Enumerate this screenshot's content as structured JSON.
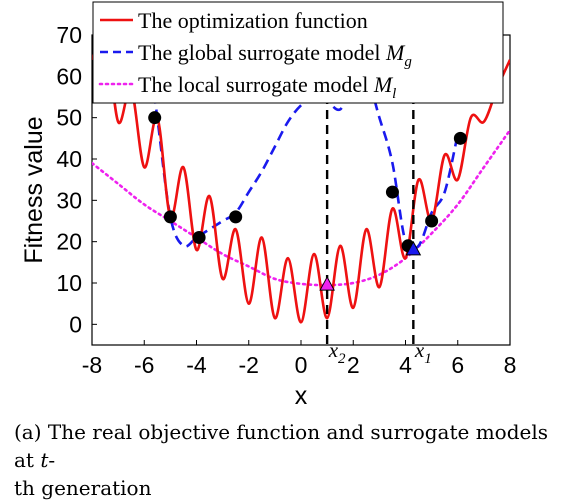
{
  "chart_data": {
    "type": "line",
    "xlabel": "x",
    "ylabel": "Fitness value",
    "xlim": [
      -8,
      8
    ],
    "ylim": [
      -5,
      70
    ],
    "x_ticks": [
      -8,
      -6,
      -4,
      -2,
      0,
      2,
      4,
      6,
      8
    ],
    "y_ticks": [
      0,
      10,
      20,
      30,
      40,
      50,
      60,
      70
    ],
    "grid": false,
    "legend_position": "top",
    "series": [
      {
        "name": "The optimization function",
        "name_subscript": "",
        "color": "#ee1111",
        "style": "solid",
        "x": [
          -8,
          -7.5,
          -7,
          -6.5,
          -6,
          -5.5,
          -5,
          -4.5,
          -4,
          -3.5,
          -3,
          -2.5,
          -2,
          -1.5,
          -1,
          -0.5,
          0,
          0.5,
          1,
          1.5,
          2,
          2.5,
          3,
          3.5,
          4,
          4.5,
          5,
          5.5,
          6,
          6.5,
          7,
          7.5,
          8
        ],
        "y": [
          64,
          71,
          49,
          57,
          38,
          50,
          26,
          38,
          18,
          31,
          11,
          23,
          5,
          21,
          1.5,
          16,
          0.5,
          17,
          1.5,
          19,
          4,
          23,
          9,
          28,
          16,
          35,
          25,
          41,
          35,
          50,
          49,
          57,
          64
        ]
      },
      {
        "name": "The global surrogate model ",
        "name_subscript": "g",
        "color": "#1a1aee",
        "style": "dashed",
        "x": [
          -6,
          -5.5,
          -5,
          -4.5,
          -4,
          -3.5,
          -3,
          -2.5,
          -2,
          -1.5,
          -1,
          -0.5,
          0,
          0.5,
          1,
          1.5,
          2,
          2.5,
          3,
          3.5,
          4,
          4.5,
          5,
          5.5,
          6
        ],
        "y": [
          75,
          50,
          26,
          19,
          21,
          23,
          25,
          27,
          32,
          37,
          43,
          49,
          53,
          55,
          54,
          52,
          58,
          60,
          50,
          39,
          20,
          19,
          27,
          32,
          46
        ]
      },
      {
        "name": "The local surrogate model ",
        "name_subscript": "l",
        "color": "#ee22ee",
        "style": "dotted",
        "x": [
          -8,
          -7,
          -6,
          -5,
          -4,
          -3,
          -2,
          -1,
          0,
          1,
          2,
          3,
          4,
          5,
          6,
          7,
          8
        ],
        "y": [
          39,
          34,
          29,
          25,
          21,
          17,
          14,
          11,
          9.8,
          9.5,
          10,
          12,
          16,
          22,
          29,
          38,
          47
        ]
      }
    ],
    "samples": {
      "color": "#000000",
      "x": [
        -5.6,
        -5.0,
        -3.9,
        -2.5,
        3.5,
        4.1,
        5.0,
        6.1
      ],
      "y": [
        50,
        26,
        21,
        26,
        32,
        19,
        25,
        45
      ]
    },
    "optima": [
      {
        "x": 1.0,
        "y": 9.5,
        "color": "#ee22ee",
        "label": "x",
        "label_subscript": "2"
      },
      {
        "x": 4.3,
        "y": 18,
        "color": "#1a1aee",
        "label": "x",
        "label_subscript": "1"
      }
    ]
  },
  "caption": {
    "prefix": "(a)  The real objective function and surrogate models at ",
    "italic": "t",
    "suffix": "-",
    "line2": "th generation"
  }
}
